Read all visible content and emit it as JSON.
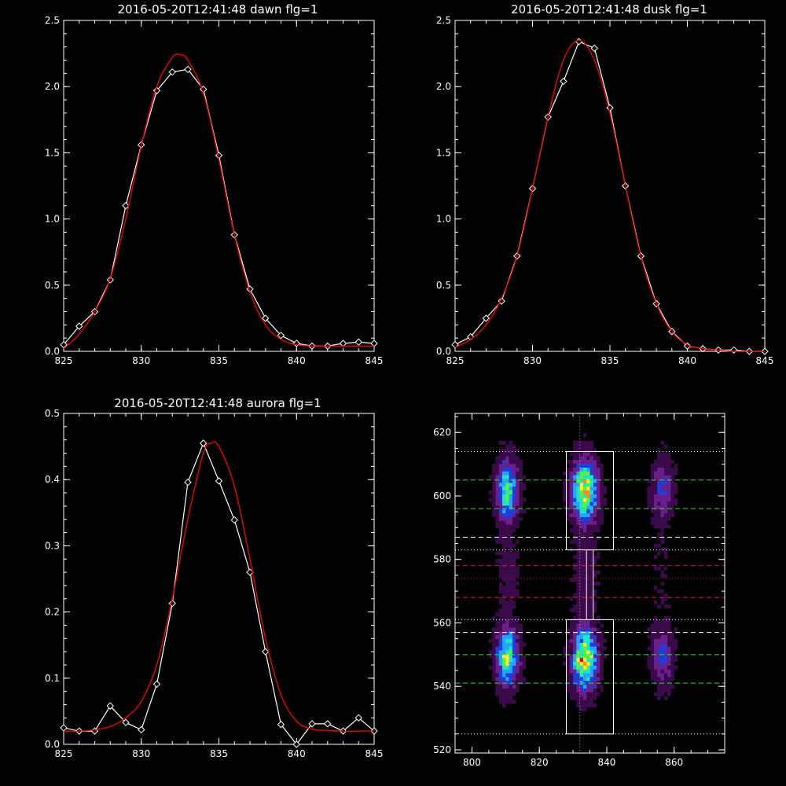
{
  "chart_data": [
    {
      "type": "line",
      "title": "2016-05-20T12:41:48 dawn flg=1",
      "xlim": [
        825,
        845
      ],
      "ylim": [
        0,
        2.5
      ],
      "xticks": [
        "825",
        "830",
        "835",
        "840",
        "845"
      ],
      "yticks": [
        "0.0",
        "0.5",
        "1.0",
        "1.5",
        "2.0",
        "2.5"
      ],
      "grid": false,
      "series": [
        {
          "color": "#ffffff",
          "marker": "diamond",
          "x": [
            825,
            826,
            827,
            828,
            829,
            830,
            831,
            832,
            833,
            834,
            835,
            836,
            837,
            838,
            839,
            840,
            841,
            842,
            843,
            844,
            845
          ],
          "y": [
            0.05,
            0.19,
            0.3,
            0.54,
            1.1,
            1.56,
            1.97,
            2.11,
            2.13,
            1.98,
            1.48,
            0.88,
            0.47,
            0.25,
            0.12,
            0.06,
            0.04,
            0.04,
            0.06,
            0.07,
            0.06
          ]
        },
        {
          "color": "#ff0000",
          "marker": "none",
          "x": [
            825,
            826,
            827,
            828,
            829,
            830,
            831,
            832,
            832.5,
            833,
            834,
            835,
            836,
            837,
            838,
            839,
            840,
            841,
            842,
            843,
            844,
            845
          ],
          "y": [
            0.02,
            0.13,
            0.3,
            0.55,
            1.0,
            1.55,
            2.0,
            2.22,
            2.24,
            2.2,
            1.95,
            1.45,
            0.88,
            0.45,
            0.2,
            0.09,
            0.05,
            0.04,
            0.04,
            0.04,
            0.04,
            0.04
          ]
        }
      ]
    },
    {
      "type": "line",
      "title": "2016-05-20T12:41:48 dusk flg=1",
      "xlim": [
        825,
        845
      ],
      "ylim": [
        0,
        2.5
      ],
      "xticks": [
        "825",
        "830",
        "835",
        "840",
        "845"
      ],
      "yticks": [
        "0.0",
        "0.5",
        "1.0",
        "1.5",
        "2.0",
        "2.5"
      ],
      "grid": false,
      "series": [
        {
          "color": "#ffffff",
          "marker": "diamond",
          "x": [
            825,
            826,
            827,
            828,
            829,
            830,
            831,
            832,
            833,
            834,
            835,
            836,
            837,
            838,
            839,
            840,
            841,
            842,
            843,
            844,
            845
          ],
          "y": [
            0.05,
            0.11,
            0.25,
            0.38,
            0.72,
            1.23,
            1.77,
            2.04,
            2.34,
            2.29,
            1.84,
            1.25,
            0.72,
            0.36,
            0.15,
            0.04,
            0.02,
            0.01,
            0.01,
            0.0,
            0.0
          ]
        },
        {
          "color": "#ff0000",
          "marker": "none",
          "x": [
            825,
            826,
            827,
            828,
            829,
            830,
            831,
            832,
            833,
            834,
            835,
            836,
            837,
            838,
            839,
            840,
            841,
            842,
            843,
            844,
            845
          ],
          "y": [
            0.03,
            0.09,
            0.2,
            0.4,
            0.72,
            1.23,
            1.77,
            2.2,
            2.35,
            2.2,
            1.8,
            1.25,
            0.72,
            0.36,
            0.15,
            0.05,
            0.02,
            0.01,
            0.0,
            0.0,
            0.0
          ]
        }
      ]
    },
    {
      "type": "line",
      "title": "2016-05-20T12:41:48 aurora flg=1",
      "xlim": [
        825,
        845
      ],
      "ylim": [
        0,
        0.5
      ],
      "xticks": [
        "825",
        "830",
        "835",
        "840",
        "845"
      ],
      "yticks": [
        "0.0",
        "0.1",
        "0.2",
        "0.3",
        "0.4",
        "0.5"
      ],
      "grid": false,
      "series": [
        {
          "color": "#ffffff",
          "marker": "diamond",
          "x": [
            825,
            826,
            827,
            828,
            829,
            830,
            831,
            832,
            833,
            834,
            835,
            836,
            837,
            838,
            839,
            840,
            841,
            842,
            843,
            844,
            845
          ],
          "y": [
            0.025,
            0.02,
            0.02,
            0.058,
            0.033,
            0.022,
            0.091,
            0.213,
            0.396,
            0.455,
            0.398,
            0.339,
            0.26,
            0.14,
            0.03,
            0.0,
            0.031,
            0.031,
            0.02,
            0.04,
            0.02
          ]
        },
        {
          "color": "#ff0000",
          "marker": "none",
          "x": [
            825,
            826,
            827,
            828,
            829,
            830,
            831,
            832,
            833,
            834,
            834.5,
            835,
            836,
            837,
            838,
            839,
            840,
            841,
            842,
            843,
            844,
            845
          ],
          "y": [
            0.02,
            0.02,
            0.022,
            0.027,
            0.04,
            0.065,
            0.12,
            0.22,
            0.34,
            0.44,
            0.455,
            0.45,
            0.39,
            0.28,
            0.16,
            0.075,
            0.035,
            0.023,
            0.021,
            0.02,
            0.02,
            0.02
          ]
        }
      ]
    },
    {
      "type": "heatmap",
      "xlim": [
        795,
        875
      ],
      "ylim": [
        519,
        626
      ],
      "xticks": [
        "800",
        "820",
        "840",
        "860"
      ],
      "yticks": [
        "520",
        "540",
        "560",
        "580",
        "600",
        "620"
      ],
      "grid": false,
      "colorscale": [
        "#000000",
        "#3a0a4a",
        "#6a1f8c",
        "#1f3ddb",
        "#22a7ff",
        "#1fe6c4",
        "#58f246",
        "#ffee22",
        "#ff8a1a",
        "#e00000"
      ],
      "emission_columns": [
        {
          "x": 810,
          "width": 3,
          "peaks": [
            {
              "y": 601,
              "amp": 0.75
            },
            {
              "y": 549,
              "amp": 0.8
            }
          ]
        },
        {
          "x": 833,
          "width": 3.5,
          "peaks": [
            {
              "y": 601,
              "amp": 1.0
            },
            {
              "y": 548,
              "amp": 1.0
            }
          ]
        },
        {
          "x": 856,
          "width": 3,
          "peaks": [
            {
              "y": 601,
              "amp": 0.35
            },
            {
              "y": 549,
              "amp": 0.35
            }
          ]
        }
      ],
      "boxes": [
        {
          "x0": 828,
          "x1": 842,
          "y0": 583,
          "y1": 614
        },
        {
          "x0": 834,
          "x1": 836,
          "y0": 561,
          "y1": 583
        },
        {
          "x0": 828,
          "x1": 842,
          "y0": 525,
          "y1": 561
        }
      ],
      "vline": {
        "x": 832,
        "color": "#ff66ff",
        "style": "dotted"
      },
      "hlines": [
        {
          "y": 614,
          "color": "#ffffff",
          "style": "dotted"
        },
        {
          "y": 605,
          "color": "#33dd33",
          "style": "dashed"
        },
        {
          "y": 596,
          "color": "#33dd33",
          "style": "dashed"
        },
        {
          "y": 587,
          "color": "#ffffff",
          "style": "dashed"
        },
        {
          "y": 583,
          "color": "#ffffff",
          "style": "dotted"
        },
        {
          "y": 578,
          "color": "#e02020",
          "style": "dashed"
        },
        {
          "y": 574,
          "color": "#e02020",
          "style": "dotted"
        },
        {
          "y": 568,
          "color": "#e02020",
          "style": "dashed"
        },
        {
          "y": 561,
          "color": "#ffffff",
          "style": "dotted"
        },
        {
          "y": 557,
          "color": "#ffffff",
          "style": "dashed"
        },
        {
          "y": 550,
          "color": "#33dd33",
          "style": "dashed"
        },
        {
          "y": 541,
          "color": "#33dd33",
          "style": "dashed"
        },
        {
          "y": 525,
          "color": "#ffffff",
          "style": "dotted"
        }
      ]
    }
  ]
}
